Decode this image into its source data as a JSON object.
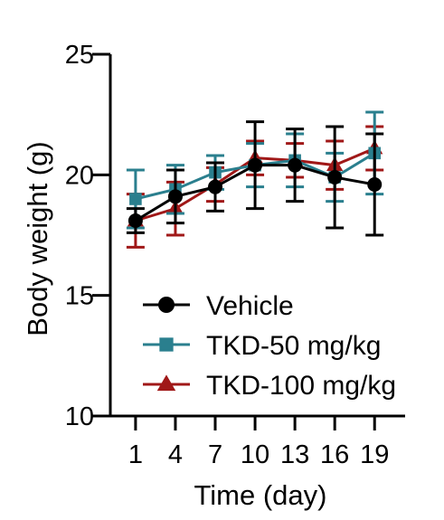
{
  "chart_data": {
    "type": "line",
    "title": "",
    "xlabel": "Time (day)",
    "ylabel": "Body weight (g)",
    "x": [
      1,
      4,
      7,
      10,
      13,
      16,
      19
    ],
    "xticks": [
      "1",
      "4",
      "7",
      "10",
      "13",
      "16",
      "19"
    ],
    "ylim": [
      10,
      25
    ],
    "yticks": [
      "10",
      "15",
      "20",
      "25"
    ],
    "grid": false,
    "legend_position": "bottom-right",
    "series": [
      {
        "name": "Vehicle",
        "color": "#000000",
        "marker": "circle",
        "values": [
          18.1,
          19.1,
          19.5,
          20.4,
          20.4,
          19.9,
          19.6
        ],
        "errors": [
          0.5,
          1.1,
          1.0,
          1.8,
          1.5,
          2.1,
          2.1
        ]
      },
      {
        "name": "TKD-50 mg/kg",
        "color": "#2a7f8e",
        "marker": "square",
        "values": [
          19.0,
          19.4,
          20.1,
          20.4,
          20.6,
          19.9,
          20.9
        ],
        "errors": [
          1.2,
          1.0,
          0.7,
          0.9,
          1.1,
          1.0,
          1.7
        ]
      },
      {
        "name": "TKD-100 mg/kg",
        "color": "#a01818",
        "marker": "triangle",
        "values": [
          18.1,
          18.6,
          19.6,
          20.7,
          20.6,
          20.4,
          21.1
        ],
        "errors": [
          1.1,
          1.1,
          0.7,
          0.7,
          0.7,
          1.0,
          0.9
        ]
      }
    ]
  }
}
